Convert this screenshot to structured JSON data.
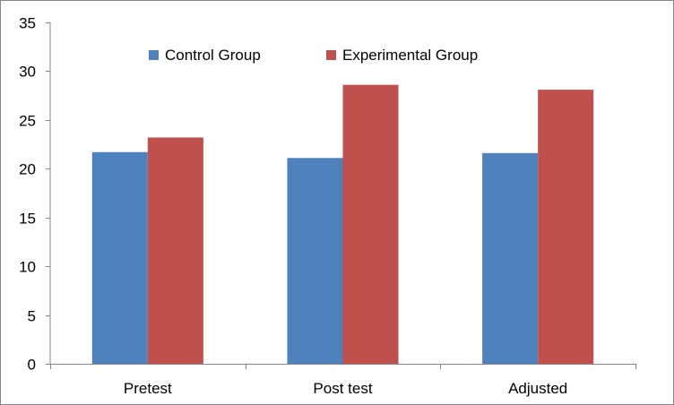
{
  "chart_data": {
    "type": "bar",
    "categories": [
      "Pretest",
      "Post test",
      "Adjusted"
    ],
    "series": [
      {
        "name": "Control  Group",
        "values": [
          21.7,
          21.1,
          21.6
        ],
        "color": "#4F81BD"
      },
      {
        "name": "Experimental Group",
        "values": [
          23.2,
          28.6,
          28.1
        ],
        "color": "#C0504D"
      }
    ],
    "ylim": [
      0,
      35
    ],
    "yticks": [
      0,
      5,
      10,
      15,
      20,
      25,
      30,
      35
    ],
    "grid": false,
    "legend": "top-center"
  }
}
